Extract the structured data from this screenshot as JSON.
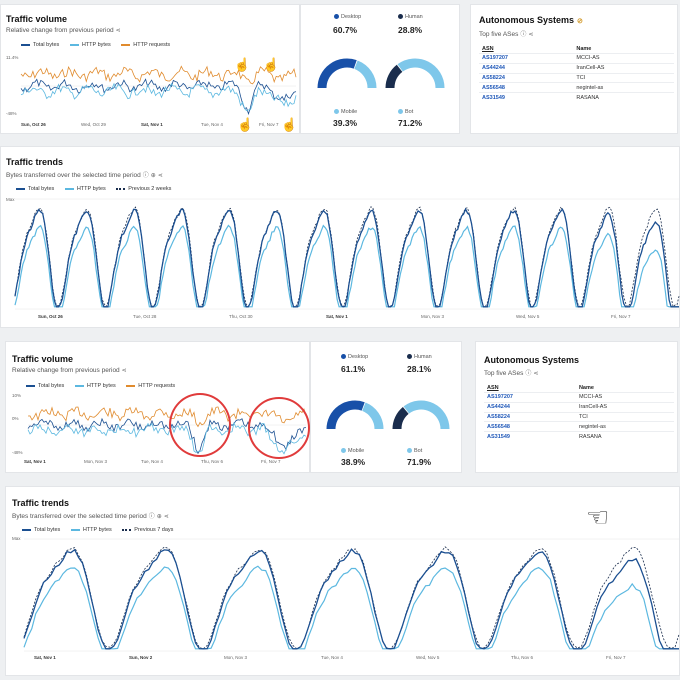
{
  "colors": {
    "total": "#1b4f91",
    "http": "#5cb8e0",
    "requests": "#e08b2e",
    "prev": "#1a2d4d",
    "desktop": "#1850a8",
    "human": "#1a2d4d",
    "mobile": "#7ec7ea",
    "bot": "#7ec7ea"
  },
  "panel1": {
    "traffic_volume": {
      "title": "Traffic volume",
      "subtitle": "Relative change from previous period",
      "legend": [
        "Total bytes",
        "HTTP bytes",
        "HTTP requests"
      ],
      "y_ticks": [
        "11.4%",
        "-48%"
      ],
      "x_ticks": [
        "Sun, Oct 26",
        "Wed, Oct 29",
        "Sat, Nov 1",
        "Tue, Nov 4",
        "Fri, Nov 7"
      ]
    },
    "stats": [
      {
        "label": "Desktop",
        "value": "60.7%",
        "fraction": 0.607,
        "color_key": "desktop"
      },
      {
        "label": "Human",
        "value": "28.8%",
        "fraction": 0.288,
        "color_key": "human"
      },
      {
        "label": "Mobile",
        "value": "39.3%",
        "color_key": "mobile"
      },
      {
        "label": "Bot",
        "value": "71.2%",
        "color_key": "bot"
      }
    ],
    "asn": {
      "title": "Autonomous Systems",
      "subtitle": "Top five ASes",
      "headers": [
        "ASN",
        "Name"
      ],
      "rows": [
        [
          "AS197207",
          "MCCI-AS"
        ],
        [
          "AS44244",
          "IranCell-AS"
        ],
        [
          "AS58224",
          "TCI"
        ],
        [
          "AS56548",
          "negintel-as"
        ],
        [
          "AS31549",
          "RASANA"
        ]
      ]
    },
    "trends": {
      "title": "Traffic trends",
      "subtitle": "Bytes transferred over the selected time period",
      "legend": [
        "Total bytes",
        "HTTP bytes",
        "Previous 2 weeks"
      ],
      "y_ticks": [
        "Max"
      ],
      "x_ticks": [
        "Sun, Oct 26",
        "Tue, Oct 28",
        "Thu, Oct 30",
        "Sat, Nov 1",
        "Mon, Nov 3",
        "Wed, Nov 5",
        "Fri, Nov 7"
      ]
    }
  },
  "panel2": {
    "traffic_volume": {
      "title": "Traffic volume",
      "subtitle": "Relative change from previous period",
      "legend": [
        "Total bytes",
        "HTTP bytes",
        "HTTP requests"
      ],
      "y_ticks": [
        "10%",
        "0%",
        "-48%"
      ],
      "x_ticks": [
        "Sat, Nov 1",
        "Mon, Nov 3",
        "Tue, Nov 4",
        "Thu, Nov 6",
        "Fri, Nov 7"
      ]
    },
    "stats": [
      {
        "label": "Desktop",
        "value": "61.1%",
        "fraction": 0.611,
        "color_key": "desktop"
      },
      {
        "label": "Human",
        "value": "28.1%",
        "fraction": 0.281,
        "color_key": "human"
      },
      {
        "label": "Mobile",
        "value": "38.9%",
        "color_key": "mobile"
      },
      {
        "label": "Bot",
        "value": "71.9%",
        "color_key": "bot"
      }
    ],
    "asn": {
      "title": "Autonomous Systems",
      "subtitle": "Top five ASes",
      "headers": [
        "ASN",
        "Name"
      ],
      "rows": [
        [
          "AS197207",
          "MCCI-AS"
        ],
        [
          "AS44244",
          "IranCell-AS"
        ],
        [
          "AS58224",
          "TCI"
        ],
        [
          "AS56548",
          "negintel-as"
        ],
        [
          "AS31549",
          "RASANA"
        ]
      ]
    },
    "trends": {
      "title": "Traffic trends",
      "subtitle": "Bytes transferred over the selected time period",
      "legend": [
        "Total bytes",
        "HTTP bytes",
        "Previous 7 days"
      ],
      "y_ticks": [
        "Max"
      ],
      "x_ticks": [
        "Sat, Nov 1",
        "Sun, Nov 2",
        "Mon, Nov 3",
        "Tue, Nov 4",
        "Wed, Nov 5",
        "Thu, Nov 6",
        "Fri, Nov 7"
      ]
    }
  }
}
